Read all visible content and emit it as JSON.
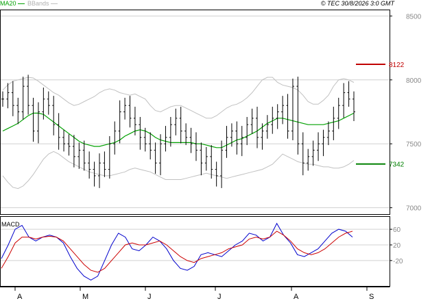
{
  "header": {
    "legend_ma": "MA20",
    "legend_bbands": "BBands",
    "copyright": "© TEC 30/8/2026 3:0 GMT"
  },
  "colors": {
    "price_bars": "#000000",
    "ma20": "#00a000",
    "bbands": "#c0c0c0",
    "resistance": "#c00000",
    "support": "#008000",
    "macd_line": "#0000cc",
    "signal_line": "#cc0000",
    "grid": "#d0d0d0"
  },
  "chart_data": [
    {
      "type": "ohlc",
      "panel": "price",
      "y_ticks": [
        "8500",
        "8000",
        "7500",
        "7000"
      ],
      "ylim": [
        6950,
        8550
      ],
      "x_tick_labels": [
        "A",
        "M",
        "J",
        "J",
        "A",
        "S"
      ],
      "series": [
        {
          "name": "MA20"
        },
        {
          "name": "BBands"
        }
      ],
      "levels": [
        {
          "kind": "resistance",
          "value": 8122,
          "label": "8122"
        },
        {
          "kind": "support",
          "value": 7342,
          "label": "7342"
        }
      ],
      "closes": [
        7850,
        7900,
        7800,
        7750,
        7950,
        7800,
        7600,
        7750,
        7850,
        7800,
        7650,
        7550,
        7500,
        7480,
        7400,
        7450,
        7350,
        7300,
        7250,
        7350,
        7300,
        7500,
        7600,
        7750,
        7800,
        7700,
        7650,
        7550,
        7500,
        7450,
        7350,
        7500,
        7550,
        7650,
        7700,
        7600,
        7550,
        7500,
        7450,
        7350,
        7400,
        7300,
        7250,
        7450,
        7550,
        7600,
        7500,
        7550,
        7650,
        7700,
        7550,
        7600,
        7650,
        7700,
        7750,
        7800,
        7600,
        7950,
        7500,
        7350,
        7400,
        7450,
        7500,
        7550,
        7600,
        7700,
        7800,
        7900,
        7850,
        7750
      ],
      "bbands_upper": [
        7920,
        7960,
        7990,
        8000,
        8010,
        8020,
        8015,
        7990,
        7960,
        7930,
        7900,
        7880,
        7850,
        7820,
        7800,
        7810,
        7830,
        7850,
        7870,
        7900,
        7920,
        7930,
        7920,
        7900,
        7890,
        7880,
        7890,
        7870,
        7850,
        7800,
        7760,
        7750,
        7770,
        7790,
        7800,
        7800,
        7780,
        7760,
        7740,
        7720,
        7700,
        7700,
        7720,
        7750,
        7780,
        7800,
        7810,
        7830,
        7860,
        7900,
        7950,
        8000,
        8020,
        8020,
        7980,
        7960,
        7950,
        7940,
        7920,
        7880,
        7830,
        7810,
        7810,
        7840,
        7880,
        7950,
        8000,
        8010,
        8000,
        7980
      ],
      "ma20": [
        7600,
        7620,
        7640,
        7660,
        7690,
        7720,
        7740,
        7740,
        7730,
        7700,
        7670,
        7640,
        7610,
        7580,
        7550,
        7520,
        7500,
        7490,
        7480,
        7480,
        7490,
        7500,
        7510,
        7530,
        7560,
        7580,
        7600,
        7610,
        7600,
        7580,
        7550,
        7530,
        7520,
        7510,
        7510,
        7510,
        7510,
        7510,
        7500,
        7500,
        7490,
        7480,
        7470,
        7470,
        7490,
        7510,
        7530,
        7540,
        7560,
        7580,
        7600,
        7630,
        7660,
        7680,
        7700,
        7700,
        7690,
        7680,
        7670,
        7660,
        7650,
        7650,
        7650,
        7650,
        7660,
        7670,
        7680,
        7700,
        7720,
        7740
      ],
      "bbands_lower": [
        7250,
        7200,
        7160,
        7150,
        7170,
        7210,
        7260,
        7320,
        7380,
        7420,
        7440,
        7420,
        7390,
        7360,
        7340,
        7320,
        7300,
        7280,
        7270,
        7260,
        7250,
        7250,
        7260,
        7270,
        7280,
        7300,
        7310,
        7300,
        7290,
        7280,
        7260,
        7240,
        7220,
        7220,
        7220,
        7220,
        7230,
        7240,
        7250,
        7260,
        7270,
        7260,
        7250,
        7240,
        7230,
        7240,
        7250,
        7260,
        7270,
        7280,
        7290,
        7300,
        7320,
        7340,
        7380,
        7420,
        7400,
        7380,
        7360,
        7350,
        7340,
        7340,
        7330,
        7320,
        7320,
        7310,
        7310,
        7320,
        7340,
        7370
      ]
    },
    {
      "type": "line",
      "panel": "macd",
      "title": "MACD",
      "y_ticks": [
        "60",
        "20",
        "-20"
      ],
      "ylim": [
        -85,
        90
      ],
      "series": [
        {
          "name": "MACD",
          "values": [
            -15,
            20,
            60,
            70,
            40,
            30,
            40,
            45,
            40,
            25,
            -10,
            -40,
            -60,
            -70,
            -60,
            -20,
            20,
            50,
            40,
            10,
            5,
            20,
            40,
            30,
            10,
            -20,
            -40,
            -45,
            -35,
            -5,
            0,
            -5,
            -10,
            5,
            20,
            30,
            50,
            45,
            30,
            40,
            75,
            45,
            25,
            -5,
            -10,
            0,
            10,
            30,
            50,
            60,
            55,
            40
          ]
        },
        {
          "name": "Signal",
          "values": [
            -40,
            -10,
            25,
            40,
            40,
            35,
            40,
            42,
            40,
            30,
            10,
            -10,
            -30,
            -45,
            -50,
            -40,
            -20,
            0,
            20,
            25,
            20,
            20,
            25,
            30,
            20,
            5,
            -10,
            -20,
            -25,
            -15,
            -10,
            -5,
            0,
            10,
            15,
            20,
            35,
            40,
            35,
            40,
            55,
            45,
            30,
            10,
            0,
            -5,
            0,
            10,
            25,
            40,
            50,
            55
          ]
        }
      ]
    }
  ]
}
